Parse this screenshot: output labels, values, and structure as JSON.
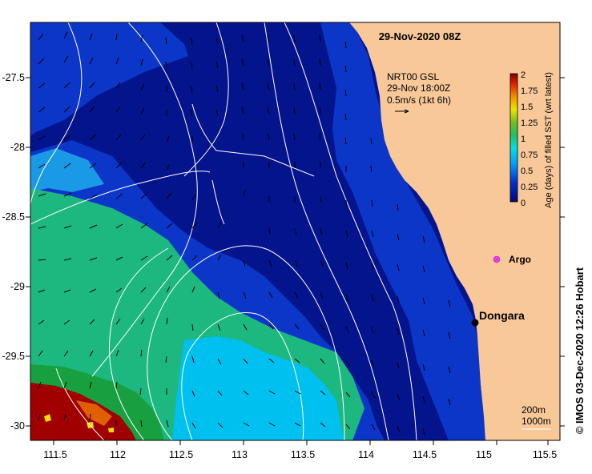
{
  "title": "29-Nov-2020 08Z",
  "x_ticks": [
    "111.5",
    "112",
    "112.5",
    "113",
    "113.5",
    "114",
    "114.5",
    "115",
    "115.5"
  ],
  "y_ticks": [
    "-27.5",
    "-28",
    "-28.5",
    "-29",
    "-29.5",
    "-30"
  ],
  "current_legend": {
    "line1": "NRT00 GSL",
    "line2": "29-Nov 18:00Z",
    "line3": "0.5m/s (1kt 6h)"
  },
  "colorbar": {
    "label": "Age (days) of filled SST (wrt latest)",
    "ticks": [
      "2",
      "1.75",
      "1.5",
      "1.25",
      "1",
      "0.75",
      "0.5",
      "0.25",
      "0"
    ]
  },
  "markers": {
    "argo": "Argo",
    "town": "Dongara"
  },
  "isobath_legend": {
    "shallow": "200m",
    "deep": "1000m"
  },
  "credit": "© IMOS 03-Dec-2020 12:26 Hobart",
  "colors": {
    "land": "#f9c898",
    "age_0": "#04148c",
    "age_025": "#0c36c8",
    "age_05": "#1a9ae6",
    "age_065": "#00c0f0",
    "age_075": "#1cb880",
    "age_1": "#18a040",
    "age_15": "#f0e000",
    "age_175": "#e06000",
    "age_2": "#a00000"
  }
}
